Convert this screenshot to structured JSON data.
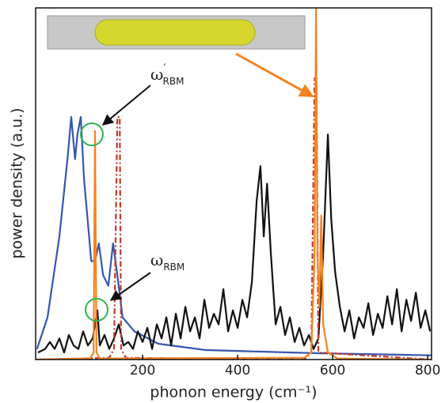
{
  "chart_data": {
    "type": "line",
    "xlabel": "phonon energy (cm⁻¹)",
    "ylabel": "power density (a.u.)",
    "xlim": [
      -25,
      808
    ],
    "ylim": [
      0,
      100
    ],
    "xticks": [
      200,
      400,
      600,
      800
    ],
    "annotations": [
      {
        "text": "ω",
        "sup": "′",
        "sub": "RBM"
      },
      {
        "text": "ω",
        "sub": "RBM"
      }
    ],
    "series": [
      {
        "color": "#3556b0",
        "style": "solid",
        "x": [
          -22,
          0,
          25,
          42,
          50,
          58,
          63,
          70,
          77,
          83,
          92,
          100,
          108,
          117,
          128,
          138,
          147,
          158,
          183,
          233,
          333,
          567,
          808
        ],
        "values": [
          3,
          12,
          35,
          57,
          69,
          57,
          64,
          69,
          51,
          42,
          28,
          28,
          33,
          24,
          21,
          33,
          24,
          12,
          8,
          4.5,
          2.7,
          1.8,
          1.2
        ]
      },
      {
        "color": "#111111",
        "style": "solid",
        "x": [
          -20,
          -5,
          5,
          15,
          25,
          35,
          45,
          55,
          65,
          75,
          85,
          95,
          105,
          110,
          120,
          130,
          140,
          150,
          160,
          170,
          180,
          190,
          200,
          210,
          220,
          230,
          240,
          250,
          260,
          270,
          280,
          290,
          300,
          310,
          320,
          330,
          340,
          350,
          360,
          370,
          380,
          390,
          400,
          410,
          420,
          430,
          440,
          448,
          455,
          462,
          470,
          480,
          490,
          500,
          510,
          520,
          530,
          540,
          550,
          560,
          570,
          580,
          590,
          597,
          605,
          615,
          625,
          635,
          645,
          655,
          665,
          675,
          685,
          695,
          705,
          715,
          725,
          735,
          745,
          755,
          765,
          775,
          785,
          795,
          805
        ],
        "values": [
          2,
          3,
          5,
          3,
          6,
          2,
          7,
          4,
          3,
          8,
          4,
          6,
          14,
          4,
          7,
          3,
          6,
          10,
          4,
          5,
          3,
          8,
          5,
          9,
          3,
          10,
          6,
          12,
          4,
          13,
          6,
          15,
          8,
          12,
          6,
          17,
          9,
          13,
          10,
          20,
          8,
          14,
          9,
          17,
          12,
          22,
          45,
          55,
          35,
          50,
          30,
          10,
          15,
          7,
          12,
          5,
          9,
          4,
          7,
          3,
          6,
          30,
          64,
          40,
          25,
          15,
          8,
          14,
          6,
          12,
          9,
          16,
          7,
          13,
          9,
          18,
          10,
          20,
          8,
          17,
          11,
          19,
          9,
          14,
          8
        ]
      },
      {
        "color": "#c0392b",
        "style": "dashdot",
        "x": [
          -25,
          130,
          140,
          147,
          152,
          155,
          165,
          540,
          555,
          562,
          566,
          570,
          808
        ],
        "values": [
          0,
          0.5,
          3,
          69,
          69,
          3,
          0.5,
          0,
          2,
          80,
          80,
          2,
          0
        ]
      },
      {
        "color": "#f58220",
        "style": "solid",
        "x": [
          -25,
          90,
          97,
          100,
          103,
          110,
          540,
          555,
          562,
          565,
          568,
          572,
          576,
          580,
          590,
          610,
          808
        ],
        "values": [
          0,
          0.3,
          2,
          65,
          2,
          0.3,
          0.5,
          2,
          30,
          100,
          30,
          15,
          41,
          10,
          2,
          0.3,
          0
        ]
      }
    ]
  }
}
